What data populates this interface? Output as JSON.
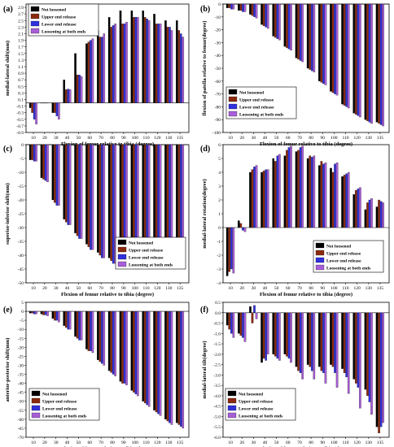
{
  "chart_data": [
    {
      "panel_label": "(a)",
      "type": "bar",
      "xlabel": "Flexion of femur relative to tibia (degree)",
      "ylabel": "medial-lateral shift(mm)",
      "ylim": [
        -0.9,
        3.0
      ],
      "yticks": [
        -0.9,
        -0.7,
        -0.5,
        -0.3,
        -0.1,
        0.1,
        0.3,
        0.5,
        0.7,
        0.9,
        1.1,
        1.3,
        1.5,
        1.7,
        1.9,
        2.1,
        2.3,
        2.5,
        2.7,
        2.9
      ],
      "yticklabels": [
        "-0.9",
        "-0.7",
        "-0.5",
        "-0.3",
        "-0.1",
        "0.1",
        "0.3",
        "0.5",
        "0.7",
        "0.9",
        "1.1",
        "1.3",
        "1.5",
        "1.7",
        "1.9",
        "2.1",
        "2.3",
        "2.5",
        "2.7",
        "2.9"
      ],
      "categories": [
        "10",
        "20",
        "30",
        "40",
        "50",
        "60",
        "70",
        "80",
        "90",
        "100",
        "110",
        "120",
        "130",
        "135"
      ],
      "legend": "top-left",
      "series": [
        {
          "name": "Not loosened",
          "color": "#000000",
          "values": [
            -0.15,
            0,
            -0.3,
            0.7,
            1.5,
            1.8,
            2.2,
            2.6,
            2.8,
            2.8,
            2.8,
            2.7,
            2.5,
            2.5
          ]
        },
        {
          "name": "Upper end release",
          "color": "#8b2a0e",
          "values": [
            -0.3,
            0,
            -0.3,
            0.4,
            0.85,
            1.85,
            2.0,
            2.3,
            2.4,
            2.6,
            2.6,
            2.4,
            2.3,
            2.2
          ]
        },
        {
          "name": "Lower end release",
          "color": "#3030dd",
          "values": [
            -0.5,
            0,
            -0.4,
            0.42,
            0.85,
            1.9,
            2.0,
            2.35,
            2.4,
            2.6,
            2.55,
            2.4,
            2.3,
            2.1
          ]
        },
        {
          "name": "Loosening at both ends",
          "color": "#a85ed8",
          "values": [
            -0.65,
            0,
            -0.5,
            0.4,
            0.8,
            1.95,
            2.1,
            2.4,
            2.45,
            2.6,
            2.5,
            2.4,
            2.2,
            2.0
          ]
        }
      ]
    },
    {
      "panel_label": "(b)",
      "type": "bar",
      "xlabel": "Flexion of femur relative to tibia (degree)",
      "ylabel": "flexion of patella relative to femur(degree)",
      "ylim": [
        -100,
        0
      ],
      "yticks": [
        0,
        -10,
        -20,
        -30,
        -40,
        -50,
        -60,
        -70,
        -80,
        -90,
        -100
      ],
      "yticklabels": [
        "0",
        "-10",
        "-20",
        "-30",
        "-40",
        "-50",
        "-60",
        "-70",
        "-80",
        "-90",
        "-100"
      ],
      "categories": [
        "10",
        "20",
        "30",
        "40",
        "50",
        "60",
        "70",
        "80",
        "90",
        "100",
        "110",
        "120",
        "130",
        "135"
      ],
      "legend": "center-left",
      "series": [
        {
          "name": "Not loosened",
          "color": "#000000",
          "values": [
            -3,
            -5,
            -8,
            -16,
            -25,
            -33,
            -42,
            -50,
            -60,
            -68,
            -78,
            -85,
            -90,
            -92
          ]
        },
        {
          "name": "Upper end release",
          "color": "#8b2a0e",
          "values": [
            -3,
            -5,
            -9,
            -17,
            -26,
            -34,
            -43,
            -51,
            -61,
            -69,
            -79,
            -86,
            -91,
            -93
          ]
        },
        {
          "name": "Lower end release",
          "color": "#3030dd",
          "values": [
            -4,
            -6,
            -10,
            -18,
            -27,
            -35,
            -44,
            -52,
            -62,
            -70,
            -80,
            -87,
            -92,
            -94
          ]
        },
        {
          "name": "Loosening at both ends",
          "color": "#a85ed8",
          "values": [
            -4,
            -6,
            -11,
            -19,
            -28,
            -36,
            -45,
            -53,
            -63,
            -71,
            -81,
            -88,
            -93,
            -95
          ]
        }
      ]
    },
    {
      "panel_label": "(c)",
      "type": "bar",
      "xlabel": "Flexion of femur relative to tibia (degree)",
      "ylabel": "superior-inferior shift(mm)",
      "ylim": [
        -50,
        0
      ],
      "yticks": [
        0,
        -5,
        -10,
        -15,
        -20,
        -25,
        -30,
        -35,
        -40,
        -45,
        -50
      ],
      "yticklabels": [
        "0",
        "-5",
        "-10",
        "-15",
        "-20",
        "-25",
        "-30",
        "-35",
        "-40",
        "-45",
        "-50"
      ],
      "categories": [
        "10",
        "20",
        "30",
        "40",
        "50",
        "60",
        "70",
        "80",
        "90",
        "100",
        "110",
        "120",
        "130",
        "135"
      ],
      "legend": "bottom-right",
      "series": [
        {
          "name": "Not loosened",
          "color": "#000000",
          "values": [
            -5.5,
            -12,
            -20,
            -27,
            -32,
            -36,
            -39,
            -41,
            -42,
            -43,
            -43,
            -42,
            -40,
            -37
          ]
        },
        {
          "name": "Upper end release",
          "color": "#8b2a0e",
          "values": [
            -5.5,
            -12.5,
            -21,
            -28,
            -33,
            -37,
            -40,
            -42,
            -43,
            -44,
            -44,
            -43,
            -41,
            -38
          ]
        },
        {
          "name": "Lower end release",
          "color": "#3030dd",
          "values": [
            -6,
            -13,
            -22,
            -29,
            -34,
            -38,
            -41,
            -43,
            -44,
            -45,
            -45,
            -44,
            -42,
            -39
          ]
        },
        {
          "name": "Loosening at both ends",
          "color": "#a85ed8",
          "values": [
            -6,
            -13.5,
            -22,
            -29,
            -34,
            -38,
            -41,
            -43,
            -44,
            -45,
            -45,
            -44,
            -42,
            -39
          ]
        }
      ]
    },
    {
      "panel_label": "(d)",
      "type": "bar",
      "xlabel": "Flexion of femur relative to tibia (degree)",
      "ylabel": "medial-lateral rotation(degree)",
      "ylim": [
        -4,
        6
      ],
      "yticks": [
        -4,
        -3,
        -2,
        -1,
        0,
        1,
        2,
        3,
        4,
        5,
        6
      ],
      "yticklabels": [
        "-4",
        "-3",
        "-2",
        "-1",
        "0",
        "1",
        "2",
        "3",
        "4",
        "5",
        "6"
      ],
      "categories": [
        "10",
        "20",
        "30",
        "40",
        "50",
        "60",
        "70",
        "80",
        "90",
        "100",
        "110",
        "120",
        "130",
        "135"
      ],
      "legend": "bottom-right",
      "series": [
        {
          "name": "Not loosened",
          "color": "#000000",
          "values": [
            -3.5,
            0.5,
            4.0,
            4.0,
            5.0,
            5.2,
            5.5,
            5.0,
            4.5,
            4.3,
            3.7,
            2.4,
            1.3,
            1.5
          ]
        },
        {
          "name": "Upper end release",
          "color": "#8b2a0e",
          "values": [
            -3.2,
            0.3,
            4.2,
            4.1,
            4.8,
            5.6,
            5.6,
            5.2,
            4.8,
            4.0,
            3.8,
            2.7,
            1.8,
            2.0
          ]
        },
        {
          "name": "Lower end release",
          "color": "#3030dd",
          "values": [
            -3.0,
            -0.2,
            4.4,
            4.2,
            5.2,
            5.8,
            5.8,
            5.1,
            4.6,
            4.6,
            3.9,
            2.8,
            2.0,
            1.9
          ]
        },
        {
          "name": "Loosening at both ends",
          "color": "#a85ed8",
          "values": [
            -3.3,
            -0.3,
            4.5,
            4.2,
            5.3,
            5.9,
            5.9,
            5.2,
            4.7,
            4.7,
            4.0,
            2.9,
            2.1,
            1.8
          ]
        }
      ]
    },
    {
      "panel_label": "(e)",
      "type": "bar",
      "xlabel": "Flexion of femur relative to tibia (degree)",
      "ylabel": "anterior-posterior shift(mm)",
      "ylim": [
        -70,
        5
      ],
      "yticks": [
        5,
        0,
        -5,
        -10,
        -15,
        -20,
        -25,
        -30,
        -35,
        -40,
        -45,
        -50,
        -55,
        -60,
        -65,
        -70
      ],
      "yticklabels": [
        "5",
        "0",
        "-5",
        "-10",
        "-15",
        "-20",
        "-25",
        "-30",
        "-35",
        "-40",
        "-45",
        "-50",
        "-55",
        "-60",
        "-65",
        "-70"
      ],
      "categories": [
        "10",
        "20",
        "30",
        "40",
        "50",
        "60",
        "70",
        "80",
        "90",
        "100",
        "110",
        "120",
        "130",
        "135"
      ],
      "legend": "bottom-left",
      "series": [
        {
          "name": "Not loosened",
          "color": "#000000",
          "values": [
            -1,
            -1.5,
            -4,
            -8,
            -14,
            -21,
            -27,
            -33,
            -39,
            -44,
            -50,
            -55,
            -60,
            -62
          ]
        },
        {
          "name": "Upper end release",
          "color": "#8b2a0e",
          "values": [
            -1,
            -2,
            -5,
            -9,
            -15,
            -22,
            -28,
            -34,
            -40,
            -45,
            -51,
            -56,
            -61,
            -63
          ]
        },
        {
          "name": "Lower end release",
          "color": "#3030dd",
          "values": [
            -1.5,
            -2,
            -5,
            -10,
            -16,
            -22,
            -29,
            -35,
            -40,
            -46,
            -52,
            -57,
            -62,
            -64
          ]
        },
        {
          "name": "Loosening at both ends",
          "color": "#a85ed8",
          "values": [
            -1.5,
            -2.5,
            -6,
            -10,
            -16,
            -23,
            -30,
            -36,
            -41,
            -47,
            -53,
            -58,
            -63,
            -65
          ]
        }
      ]
    },
    {
      "panel_label": "(f)",
      "type": "bar",
      "xlabel": "Flexion of femur relative to tibia (degree)",
      "ylabel": "medial-lateral tilt(degree)",
      "ylim": [
        -6,
        0.5
      ],
      "yticks": [
        0.5,
        0,
        -0.5,
        -1,
        -1.5,
        -2,
        -2.5,
        -3,
        -3.5,
        -4,
        -4.5,
        -5,
        -5.5,
        -6
      ],
      "yticklabels": [
        "0.5",
        "0.0",
        "-0.5",
        "-1.0",
        "-1.5",
        "-2.0",
        "-2.5",
        "-3.0",
        "-3.5",
        "-4.0",
        "-4.5",
        "-5.0",
        "-5.5",
        "-6.0"
      ],
      "categories": [
        "10",
        "20",
        "30",
        "40",
        "50",
        "60",
        "70",
        "80",
        "90",
        "100",
        "110",
        "120",
        "130",
        "135"
      ],
      "legend": "bottom-left",
      "series": [
        {
          "name": "Not loosened",
          "color": "#000000",
          "values": [
            -0.6,
            -1.0,
            0.3,
            -2.4,
            -2.0,
            -2.0,
            -2.6,
            -2.5,
            -2.6,
            -2.5,
            -2.7,
            -3.2,
            -3.7,
            -5.5
          ]
        },
        {
          "name": "Upper end release",
          "color": "#8b2a0e",
          "values": [
            -0.8,
            -1.1,
            -0.5,
            -2.2,
            -2.1,
            -2.1,
            -2.8,
            -2.6,
            -2.8,
            -2.6,
            -2.9,
            -3.4,
            -4.0,
            -5.8
          ]
        },
        {
          "name": "Lower end release",
          "color": "#3030dd",
          "values": [
            -1.0,
            -1.2,
            0.35,
            -2.3,
            -2.2,
            -2.2,
            -2.9,
            -2.8,
            -2.9,
            -2.9,
            -3.1,
            -3.6,
            -4.3,
            -5.5
          ]
        },
        {
          "name": "Loosening at both ends",
          "color": "#a85ed8",
          "values": [
            -1.2,
            -1.4,
            -0.3,
            -2.0,
            -2.3,
            -2.4,
            -3.2,
            -3.2,
            -3.4,
            -3.6,
            -3.9,
            -4.6,
            -4.9,
            -5.3
          ]
        }
      ]
    }
  ]
}
